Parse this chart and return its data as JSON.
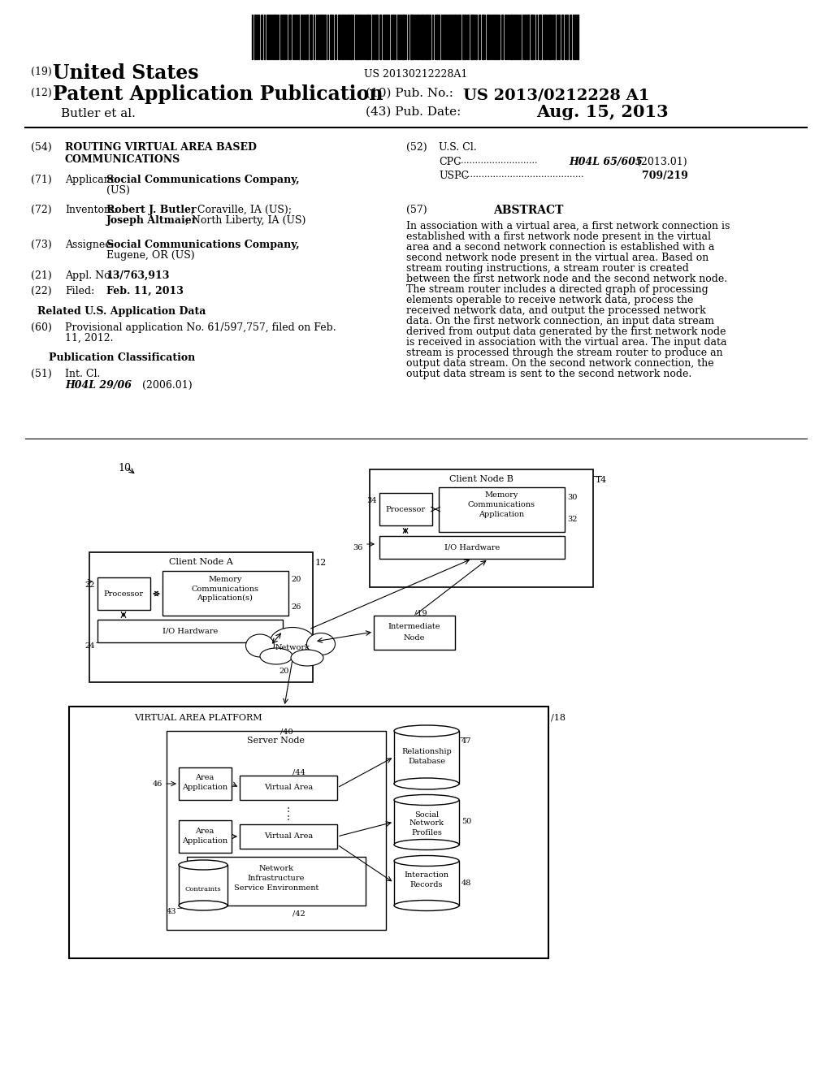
{
  "bg_color": "#ffffff",
  "barcode_text": "US 20130212228A1",
  "patent_number": "US 2013/0212228 A1",
  "pub_date": "Aug. 15, 2013",
  "title": "ROUTING VIRTUAL AREA BASED COMMUNICATIONS",
  "inventors": "Robert J. Butler, Coraville, IA (US); Joseph Altmaier, North Liberty, IA (US)",
  "assignee": "Social Communications Company, Eugene, OR (US)",
  "applicant": "Social Communications Company, (US)",
  "appl_no": "13/763,913",
  "filed": "Feb. 11, 2013",
  "provisional": "61/597,757, filed on Feb. 11, 2012.",
  "int_cl": "H04L 29/06",
  "int_cl_date": "(2006.01)",
  "cpc": "H04L 65/605",
  "cpc_date": "(2013.01)",
  "uspc": "709/219",
  "abstract": "In association with a virtual area, a first network connection is established with a first network node present in the virtual area and a second network connection is established with a second network node present in the virtual area. Based on stream routing instructions, a stream router is created between the first network node and the second network node. The stream router includes a directed graph of processing elements operable to receive network data, process the received network data, and output the processed network data. On the first network connection, an input data stream derived from output data generated by the first network node is received in association with the virtual area. The input data stream is processed through the stream router to produce an output data stream. On the second network connection, the output data stream is sent to the second network node."
}
